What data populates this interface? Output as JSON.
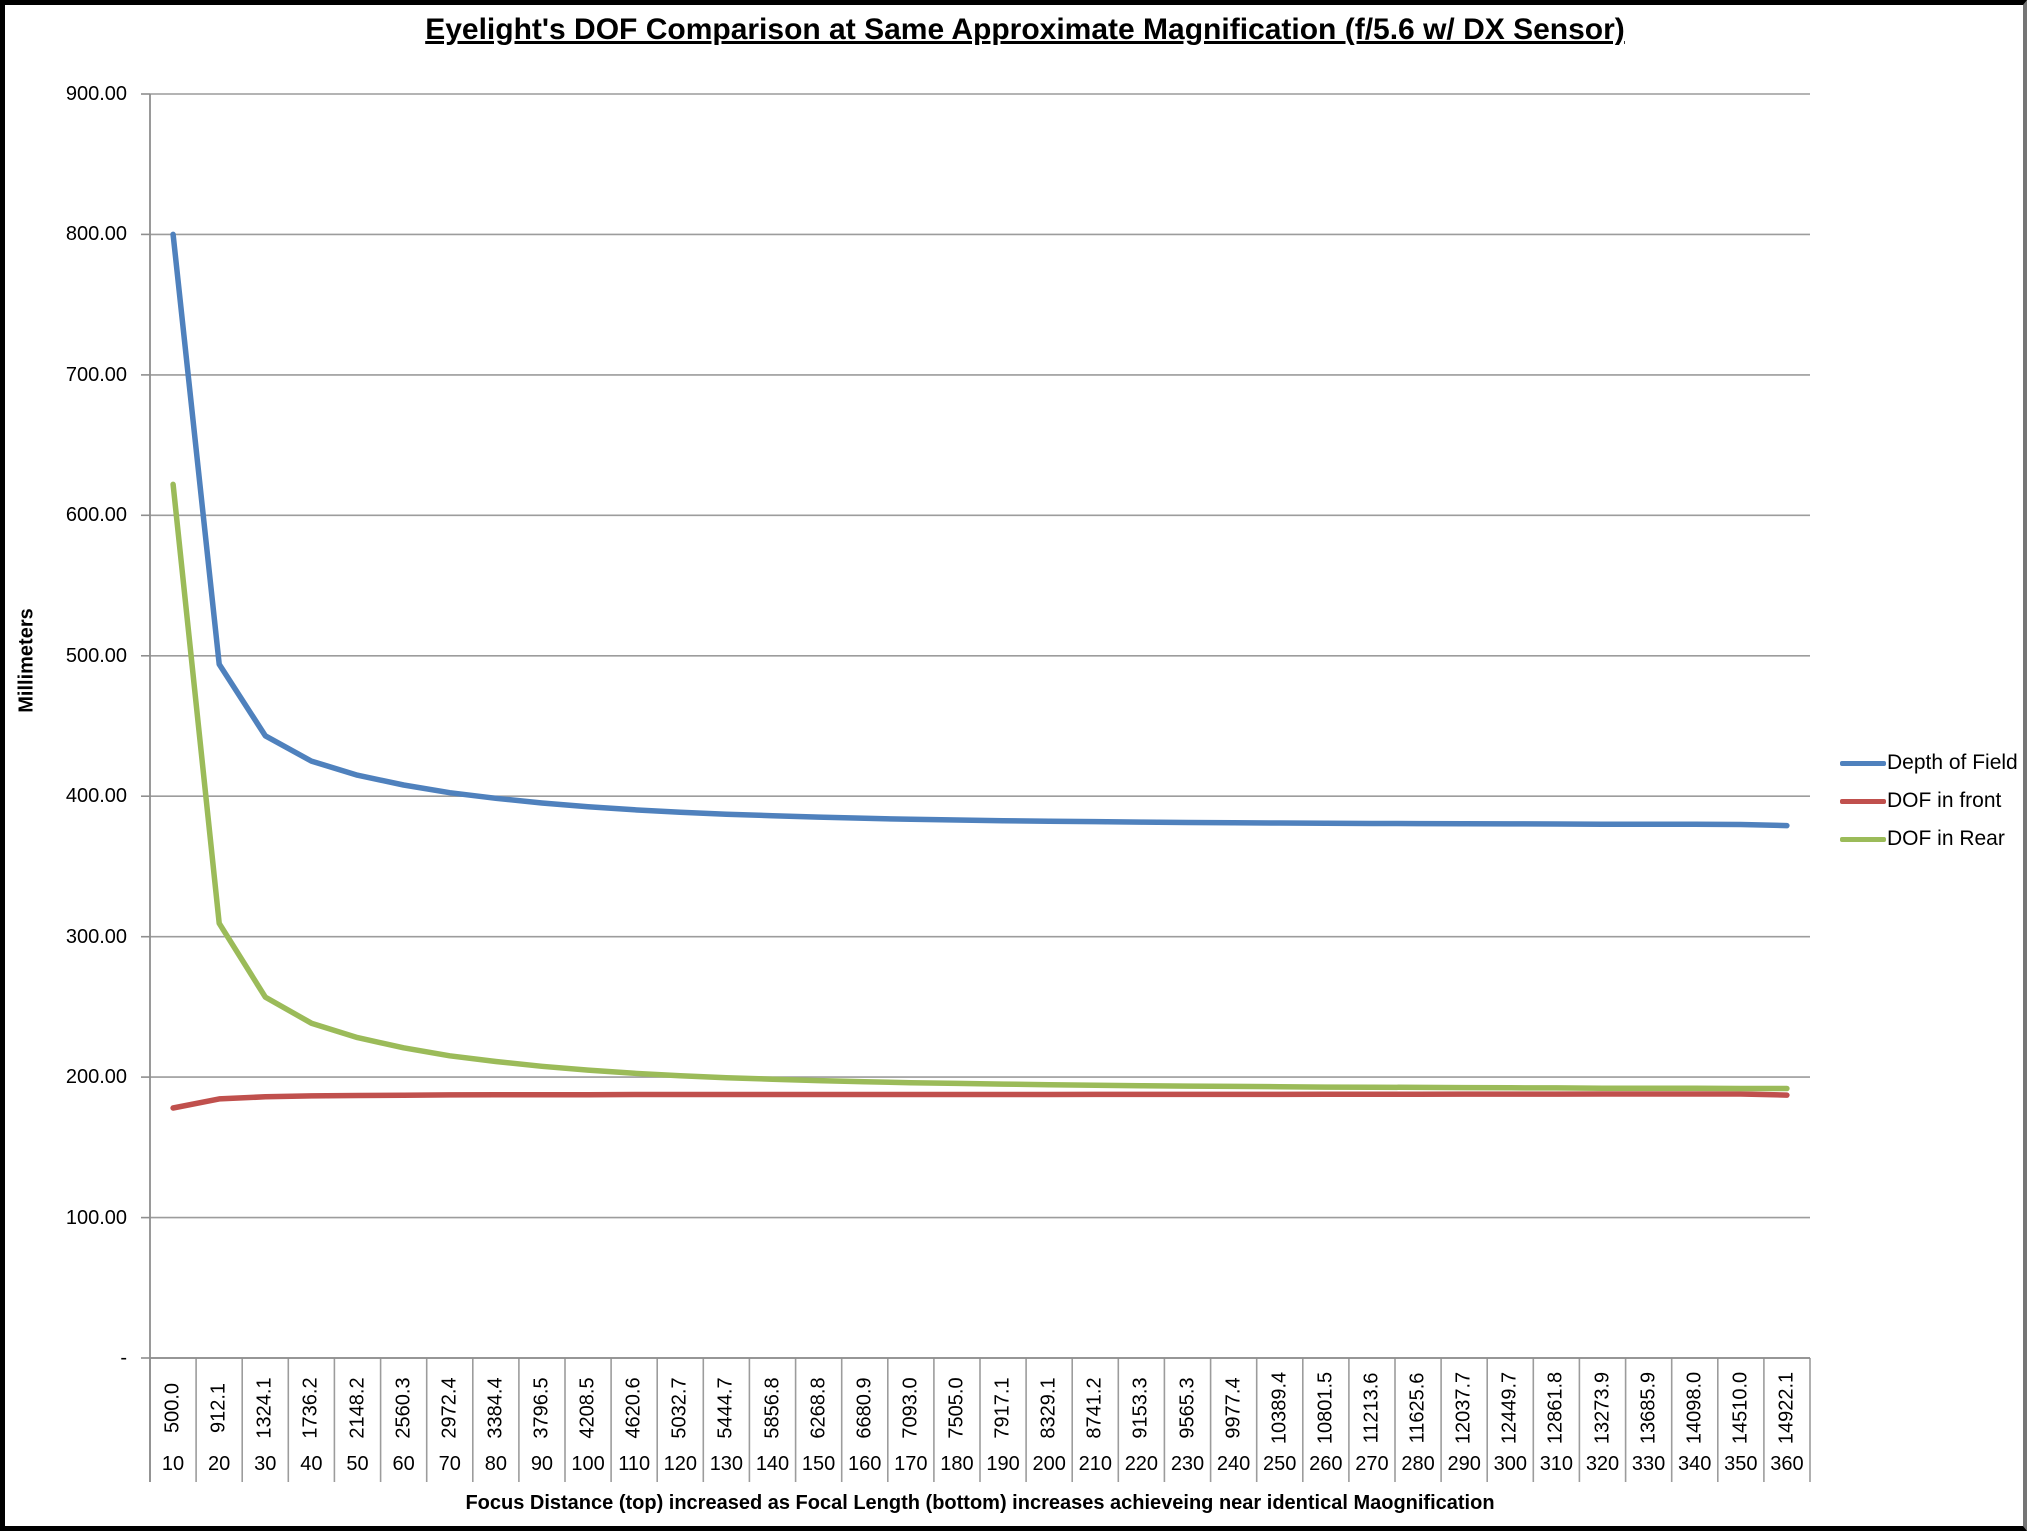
{
  "title": "Eyelight's DOF Comparison at Same Approximate Magnification (f/5.6 w/ DX Sensor)",
  "y_axis": {
    "title": "Millimeters",
    "tick_labels": [
      "900.00",
      "800.00",
      "700.00",
      "600.00",
      "500.00",
      "400.00",
      "300.00",
      "200.00",
      "100.00",
      "-"
    ],
    "tick_values": [
      900,
      800,
      700,
      600,
      500,
      400,
      300,
      200,
      100,
      0
    ]
  },
  "x_axis": {
    "title": "Focus Distance (top) increased as Focal Length (bottom) increases achieveing near identical Maognification",
    "top_labels": [
      "500.0",
      "912.1",
      "1324.1",
      "1736.2",
      "2148.2",
      "2560.3",
      "2972.4",
      "3384.4",
      "3796.5",
      "4208.5",
      "4620.6",
      "5032.7",
      "5444.7",
      "5856.8",
      "6268.8",
      "6680.9",
      "7093.0",
      "7505.0",
      "7917.1",
      "8329.1",
      "8741.2",
      "9153.3",
      "9565.3",
      "9977.4",
      "10389.4",
      "10801.5",
      "11213.6",
      "11625.6",
      "12037.7",
      "12449.7",
      "12861.8",
      "13273.9",
      "13685.9",
      "14098.0",
      "14510.0",
      "14922.1"
    ],
    "bottom_labels": [
      "10",
      "20",
      "30",
      "40",
      "50",
      "60",
      "70",
      "80",
      "90",
      "100",
      "110",
      "120",
      "130",
      "140",
      "150",
      "160",
      "170",
      "180",
      "190",
      "200",
      "210",
      "220",
      "230",
      "240",
      "250",
      "260",
      "270",
      "280",
      "290",
      "300",
      "310",
      "320",
      "330",
      "340",
      "350",
      "360"
    ]
  },
  "legend": [
    {
      "label": "Depth of Field",
      "color": "#4F81BD"
    },
    {
      "label": "DOF in front",
      "color": "#C0504D"
    },
    {
      "label": "DOF in Rear",
      "color": "#9BBB59"
    }
  ],
  "colors": {
    "gridline": "#9C9C9C",
    "axis": "#8E8E8E"
  },
  "chart_data": {
    "type": "line",
    "title": "Eyelight's DOF Comparison at Same Approximate Magnification (f/5.6 w/ DX Sensor)",
    "xlabel": "Focus Distance (top) increased as Focal Length (bottom) increases achieveing near identical Maognification",
    "ylabel": "Millimeters",
    "ylim": [
      0,
      900
    ],
    "grid": true,
    "legend_position": "right",
    "x_focus_distance_mm": [
      500.0,
      912.1,
      1324.1,
      1736.2,
      2148.2,
      2560.3,
      2972.4,
      3384.4,
      3796.5,
      4208.5,
      4620.6,
      5032.7,
      5444.7,
      5856.8,
      6268.8,
      6680.9,
      7093.0,
      7505.0,
      7917.1,
      8329.1,
      8741.2,
      9153.3,
      9565.3,
      9977.4,
      10389.4,
      10801.5,
      11213.6,
      11625.6,
      12037.7,
      12449.7,
      12861.8,
      13273.9,
      13685.9,
      14098.0,
      14510.0,
      14922.1
    ],
    "x_focal_length_mm": [
      10,
      20,
      30,
      40,
      50,
      60,
      70,
      80,
      90,
      100,
      110,
      120,
      130,
      140,
      150,
      160,
      170,
      180,
      190,
      200,
      210,
      220,
      230,
      240,
      250,
      260,
      270,
      280,
      290,
      300,
      310,
      320,
      330,
      340,
      350,
      360
    ],
    "series": [
      {
        "name": "Depth of Field",
        "color": "#4F81BD",
        "values": [
          800,
          494,
          443,
          425,
          415,
          408,
          402.5,
          398.5,
          395.2,
          392.5,
          390.3,
          388.6,
          387.2,
          386.1,
          385.1,
          384.3,
          383.6,
          383.1,
          382.6,
          382.2,
          381.9,
          381.6,
          381.3,
          381.1,
          380.9,
          380.7,
          380.6,
          380.5,
          380.4,
          380.3,
          380.2,
          380.1,
          380.0,
          380.0,
          379.9,
          379.1
        ]
      },
      {
        "name": "DOF in front",
        "color": "#C0504D",
        "values": [
          178,
          184.5,
          186,
          186.6,
          186.9,
          187.1,
          187.3,
          187.4,
          187.5,
          187.5,
          187.6,
          187.6,
          187.6,
          187.6,
          187.6,
          187.6,
          187.6,
          187.6,
          187.6,
          187.6,
          187.7,
          187.7,
          187.7,
          187.7,
          187.7,
          187.8,
          187.8,
          187.8,
          187.9,
          187.9,
          187.9,
          188,
          188,
          188,
          188,
          187.2
        ]
      },
      {
        "name": "DOF in Rear",
        "color": "#9BBB59",
        "values": [
          622,
          309.5,
          257,
          238.4,
          228.1,
          220.9,
          215.2,
          211.1,
          207.7,
          205,
          202.7,
          201,
          199.6,
          198.5,
          197.5,
          196.7,
          196,
          195.5,
          195,
          194.6,
          194.2,
          193.9,
          193.6,
          193.4,
          193.2,
          192.9,
          192.8,
          192.7,
          192.5,
          192.4,
          192.3,
          192.1,
          192,
          192,
          191.9,
          191.9
        ]
      }
    ]
  }
}
